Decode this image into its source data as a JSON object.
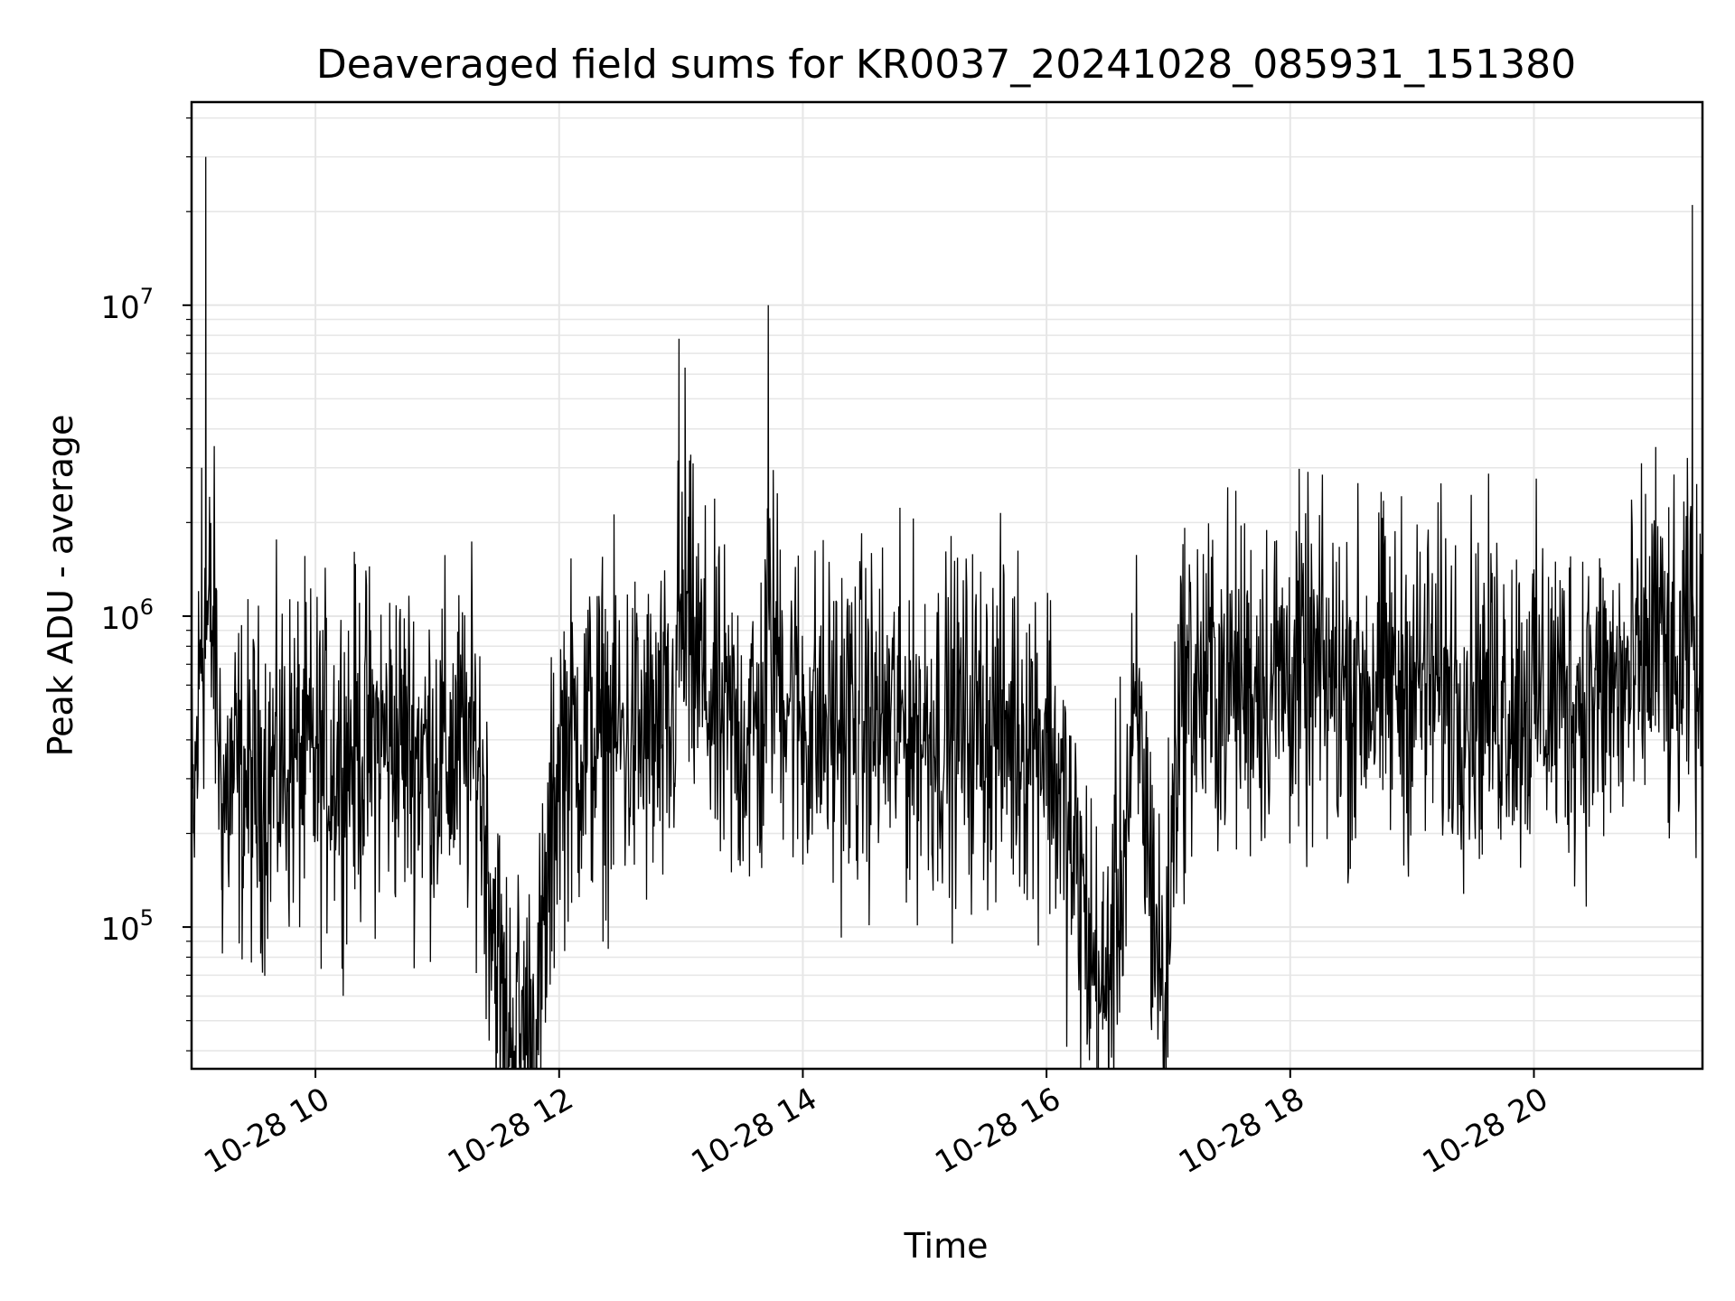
{
  "chart_data": {
    "type": "line",
    "title": "Deaveraged field sums for KR0037_20241028_085931_151380",
    "xlabel": "Time",
    "ylabel": "Peak ADU - average",
    "yscale": "log",
    "xlim": [
      "2024-10-28 08:59",
      "2024-10-28 21:23"
    ],
    "ylim": [
      35000,
      45000000
    ],
    "x_ticks": [
      "10-28 10",
      "10-28 12",
      "10-28 14",
      "10-28 16",
      "10-28 18",
      "10-28 20"
    ],
    "y_ticks": [
      {
        "base": "10",
        "exp": "5"
      },
      {
        "base": "10",
        "exp": "6"
      },
      {
        "base": "10",
        "exp": "7"
      }
    ],
    "grid": true,
    "line_color": "#000000",
    "series": [
      {
        "x": [
          "2024-10-28 09:00",
          "2024-10-28 09:04",
          "2024-10-28 09:06",
          "2024-10-28 09:10",
          "2024-10-28 09:14",
          "2024-10-28 09:20",
          "2024-10-28 09:30",
          "2024-10-28 09:40",
          "2024-10-28 09:50",
          "2024-10-28 10:00",
          "2024-10-28 10:20",
          "2024-10-28 10:40",
          "2024-10-28 11:00",
          "2024-10-28 11:20",
          "2024-10-28 11:33",
          "2024-10-28 11:49",
          "2024-10-28 12:00",
          "2024-10-28 12:20",
          "2024-10-28 12:40",
          "2024-10-28 12:55",
          "2024-10-28 12:59",
          "2024-10-28 13:02",
          "2024-10-28 13:20",
          "2024-10-28 13:40",
          "2024-10-28 13:43",
          "2024-10-28 14:00",
          "2024-10-28 14:30",
          "2024-10-28 15:00",
          "2024-10-28 15:30",
          "2024-10-28 16:00",
          "2024-10-28 16:28",
          "2024-10-28 16:45",
          "2024-10-28 16:58",
          "2024-10-28 17:05",
          "2024-10-28 17:30",
          "2024-10-28 18:00",
          "2024-10-28 18:30",
          "2024-10-28 19:00",
          "2024-10-28 19:30",
          "2024-10-28 20:00",
          "2024-10-28 20:30",
          "2024-10-28 20:50",
          "2024-10-28 21:00",
          "2024-10-28 21:10",
          "2024-10-28 21:18",
          "2024-10-28 21:22"
        ],
        "values": [
          200000,
          3000000,
          30000000,
          1500000,
          250000,
          300000,
          280000,
          320000,
          350000,
          330000,
          380000,
          400000,
          350000,
          370000,
          48000,
          45000,
          380000,
          420000,
          400000,
          380000,
          7800000,
          6300000,
          420000,
          430000,
          10000000,
          450000,
          460000,
          440000,
          450000,
          430000,
          53000,
          450000,
          50000,
          580000,
          620000,
          650000,
          600000,
          620000,
          580000,
          560000,
          550000,
          600000,
          3500000,
          520000,
          21000000,
          480000
        ]
      }
    ]
  }
}
